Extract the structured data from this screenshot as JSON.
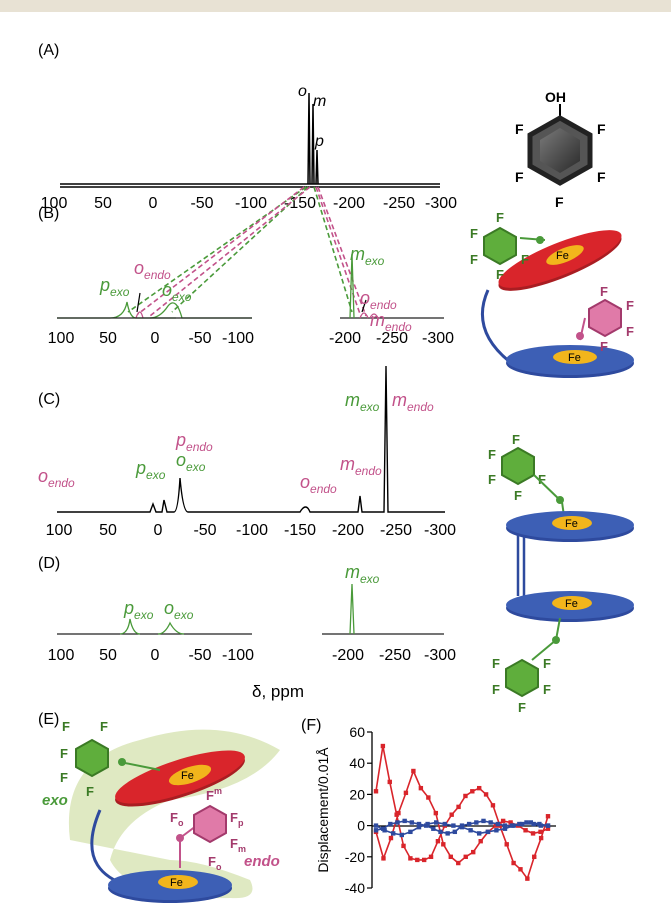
{
  "panels": {
    "A": "(A)",
    "B": "(B)",
    "C": "(C)",
    "D": "(D)",
    "E": "(E)",
    "F": "(F)"
  },
  "peaks": {
    "o": "o",
    "m": "m",
    "p": "p",
    "exo": "exo",
    "endo": "endo"
  },
  "xlabel": "δ, ppm",
  "ticks": {
    "full": [
      "100",
      "50",
      "0",
      "-50",
      "-100",
      "-150",
      "-200",
      "-250",
      "-300"
    ],
    "left": [
      "100",
      "50",
      "0",
      "-50",
      "-100"
    ],
    "right": [
      "-200",
      "-250",
      "-300"
    ]
  },
  "molecule": {
    "oh": "OH",
    "f": "F",
    "fe": "Fe",
    "exo_label": "exo",
    "endo_label": "endo",
    "fo": "F",
    "fo_sub": "o",
    "fm": "F",
    "fm_sub": "m",
    "fp": "F",
    "fp_sub": "p"
  },
  "colors": {
    "green": "#4a9a3a",
    "pink": "#c2528a",
    "red": "#d9252b",
    "blue": "#2e4a9e",
    "yellow": "#f2b51c",
    "halo": "#dfe9c2"
  },
  "chart_data": {
    "type": "line",
    "ylabel": "Displacement/0.01Å",
    "ylim": [
      -40,
      60
    ],
    "yticks": [
      "60",
      "40",
      "20",
      "0",
      "-20",
      "-40"
    ],
    "series": [
      {
        "values": [
          22,
          51,
          28,
          7,
          -13,
          -21,
          -22,
          -22,
          -20,
          -10,
          0,
          7,
          12,
          19,
          22,
          24,
          20,
          13,
          0,
          -12,
          -24,
          -28,
          -34,
          -20,
          -8,
          6
        ]
      },
      {
        "values": [
          -4,
          -21,
          -8,
          8,
          21,
          35,
          24,
          18,
          8,
          -12,
          -20,
          -24,
          -20,
          -17,
          -10,
          -4,
          0,
          3,
          2,
          0,
          -3,
          -5,
          -4,
          -2
        ]
      },
      {
        "values": [
          -3,
          -2,
          1,
          2,
          3,
          2,
          1,
          0,
          -2,
          -4,
          -5,
          -4,
          0,
          1,
          2,
          3,
          2,
          1,
          0,
          0,
          1,
          2,
          1,
          0,
          0
        ]
      },
      {
        "values": [
          0,
          -3,
          -5,
          -6,
          -4,
          -1,
          1,
          2,
          1,
          0,
          -1,
          -3,
          -5,
          -4,
          -3,
          -2,
          0,
          1,
          2,
          1,
          0
        ]
      }
    ]
  }
}
